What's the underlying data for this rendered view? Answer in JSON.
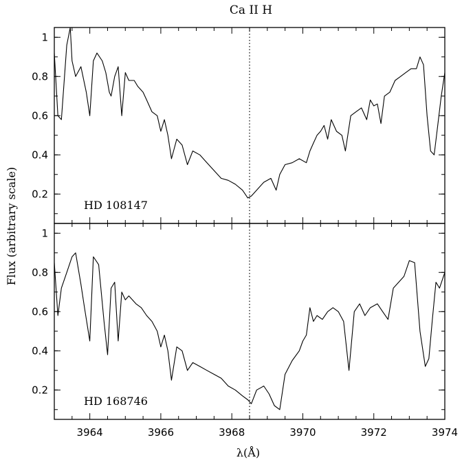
{
  "chart_data": {
    "type": "line",
    "title": "Ca II H",
    "xlabel": "λ(Å)",
    "ylabel": "Flux (arbitrary scale)",
    "xlim": [
      3963,
      3974
    ],
    "x_ticks": [
      3964,
      3966,
      3968,
      3970,
      3972,
      3974
    ],
    "x_tick_labels": [
      "3964",
      "3966",
      "3968",
      "3970",
      "3972",
      "3974"
    ],
    "ylim": [
      0.05,
      1.05
    ],
    "y_ticks": [
      0.2,
      0.4,
      0.6,
      0.8,
      1
    ],
    "y_tick_labels": [
      "0.2",
      "0.4",
      "0.6",
      "0.8",
      "1"
    ],
    "line_marker_x": 3968.5,
    "panels": [
      {
        "label": "HD 108147",
        "x": [
          3963.0,
          3963.1,
          3963.2,
          3963.35,
          3963.45,
          3963.5,
          3963.6,
          3963.75,
          3963.9,
          3964.0,
          3964.1,
          3964.2,
          3964.35,
          3964.45,
          3964.55,
          3964.6,
          3964.7,
          3964.8,
          3964.9,
          3965.0,
          3965.1,
          3965.25,
          3965.35,
          3965.5,
          3965.6,
          3965.75,
          3965.9,
          3966.0,
          3966.1,
          3966.2,
          3966.3,
          3966.45,
          3966.6,
          3966.75,
          3966.9,
          3967.1,
          3967.3,
          3967.5,
          3967.7,
          3967.9,
          3968.1,
          3968.3,
          3968.45,
          3968.55,
          3968.7,
          3968.9,
          3969.1,
          3969.25,
          3969.35,
          3969.5,
          3969.7,
          3969.9,
          3970.1,
          3970.2,
          3970.3,
          3970.4,
          3970.5,
          3970.6,
          3970.7,
          3970.8,
          3970.95,
          3971.1,
          3971.2,
          3971.35,
          3971.5,
          3971.65,
          3971.8,
          3971.9,
          3972.0,
          3972.1,
          3972.2,
          3972.3,
          3972.45,
          3972.6,
          3972.75,
          3972.9,
          3973.05,
          3973.2,
          3973.3,
          3973.4,
          3973.5,
          3973.6,
          3973.7,
          3973.8,
          3973.9,
          3974.0
        ],
        "y": [
          0.92,
          0.6,
          0.58,
          0.96,
          1.05,
          0.88,
          0.8,
          0.85,
          0.72,
          0.6,
          0.88,
          0.92,
          0.88,
          0.82,
          0.72,
          0.7,
          0.8,
          0.85,
          0.6,
          0.82,
          0.78,
          0.78,
          0.75,
          0.72,
          0.68,
          0.62,
          0.6,
          0.52,
          0.58,
          0.5,
          0.38,
          0.48,
          0.45,
          0.35,
          0.42,
          0.4,
          0.36,
          0.32,
          0.28,
          0.27,
          0.25,
          0.22,
          0.18,
          0.19,
          0.22,
          0.26,
          0.28,
          0.22,
          0.3,
          0.35,
          0.36,
          0.38,
          0.36,
          0.42,
          0.46,
          0.5,
          0.52,
          0.55,
          0.48,
          0.58,
          0.52,
          0.5,
          0.42,
          0.6,
          0.62,
          0.64,
          0.58,
          0.68,
          0.65,
          0.66,
          0.56,
          0.7,
          0.72,
          0.78,
          0.8,
          0.82,
          0.84,
          0.84,
          0.9,
          0.86,
          0.6,
          0.42,
          0.4,
          0.55,
          0.7,
          0.82
        ]
      },
      {
        "label": "HD 168746",
        "x": [
          3963.0,
          3963.1,
          3963.2,
          3963.35,
          3963.5,
          3963.6,
          3963.75,
          3963.85,
          3964.0,
          3964.1,
          3964.25,
          3964.4,
          3964.5,
          3964.6,
          3964.7,
          3964.8,
          3964.9,
          3965.0,
          3965.1,
          3965.3,
          3965.45,
          3965.6,
          3965.75,
          3965.9,
          3966.0,
          3966.1,
          3966.2,
          3966.3,
          3966.45,
          3966.6,
          3966.75,
          3966.9,
          3967.1,
          3967.3,
          3967.5,
          3967.7,
          3967.9,
          3968.1,
          3968.3,
          3968.45,
          3968.55,
          3968.7,
          3968.9,
          3969.05,
          3969.2,
          3969.35,
          3969.5,
          3969.7,
          3969.9,
          3970.0,
          3970.1,
          3970.2,
          3970.3,
          3970.4,
          3970.55,
          3970.7,
          3970.85,
          3971.0,
          3971.15,
          3971.3,
          3971.45,
          3971.6,
          3971.75,
          3971.9,
          3972.1,
          3972.25,
          3972.4,
          3972.55,
          3972.7,
          3972.85,
          3973.0,
          3973.15,
          3973.3,
          3973.45,
          3973.55,
          3973.65,
          3973.75,
          3973.85,
          3974.0
        ],
        "y": [
          0.85,
          0.58,
          0.72,
          0.8,
          0.88,
          0.9,
          0.74,
          0.62,
          0.45,
          0.88,
          0.84,
          0.55,
          0.38,
          0.72,
          0.75,
          0.45,
          0.7,
          0.66,
          0.68,
          0.64,
          0.62,
          0.58,
          0.55,
          0.5,
          0.42,
          0.48,
          0.4,
          0.25,
          0.42,
          0.4,
          0.3,
          0.34,
          0.32,
          0.3,
          0.28,
          0.26,
          0.22,
          0.2,
          0.17,
          0.15,
          0.13,
          0.2,
          0.22,
          0.18,
          0.12,
          0.1,
          0.28,
          0.35,
          0.4,
          0.45,
          0.48,
          0.62,
          0.55,
          0.58,
          0.56,
          0.6,
          0.62,
          0.6,
          0.55,
          0.3,
          0.6,
          0.64,
          0.58,
          0.62,
          0.64,
          0.6,
          0.56,
          0.72,
          0.75,
          0.78,
          0.86,
          0.85,
          0.5,
          0.32,
          0.36,
          0.56,
          0.75,
          0.72,
          0.8
        ]
      }
    ]
  }
}
